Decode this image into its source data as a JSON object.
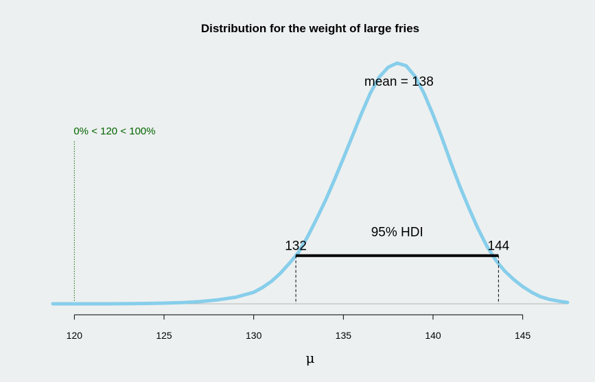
{
  "colors": {
    "background": "#edf0f0",
    "curve": "#87ceeb",
    "compare": "#006400",
    "hdi": "#000000",
    "baseline": "#b8b8b8"
  },
  "chart_data": {
    "type": "line",
    "title": "Distribution for the weight of large fries",
    "xlabel": "μ",
    "ylabel": "",
    "xlim": [
      118.8,
      147.5
    ],
    "xticks": [
      120,
      125,
      130,
      135,
      140,
      145
    ],
    "grid": false,
    "series": [
      {
        "x": [
          118.8,
          120,
          121,
          122,
          123,
          124,
          125,
          126,
          127,
          128,
          129,
          130,
          130.5,
          131,
          131.5,
          132,
          132.5,
          133,
          133.5,
          134,
          134.5,
          135,
          135.5,
          136,
          136.5,
          137,
          137.5,
          138,
          138.5,
          139,
          139.5,
          140,
          140.5,
          141,
          141.5,
          142,
          142.5,
          143,
          143.5,
          144,
          144.5,
          145,
          145.5,
          146,
          146.5,
          147,
          147.5
        ],
        "y": [
          0.0,
          0.0,
          0.0,
          0.0,
          0.0006,
          0.0014,
          0.0028,
          0.0051,
          0.0094,
          0.0164,
          0.0273,
          0.048,
          0.068,
          0.094,
          0.128,
          0.169,
          0.2137,
          0.278,
          0.3519,
          0.429,
          0.5152,
          0.6043,
          0.696,
          0.789,
          0.8745,
          0.942,
          0.983,
          1.0,
          0.989,
          0.9444,
          0.8742,
          0.7855,
          0.6883,
          0.5852,
          0.4869,
          0.3974,
          0.3133,
          0.2395,
          0.1808,
          0.1359,
          0.1008,
          0.0716,
          0.048,
          0.0294,
          0.0182,
          0.0112,
          0.0057
        ]
      }
    ],
    "annotations": {
      "mean_label": "mean = 138",
      "mean_x": 138.1,
      "hdi_label": "95% HDI",
      "hdi_low": 132.35,
      "hdi_high": 143.65,
      "hdi_low_label": "132",
      "hdi_high_label": "144",
      "compare_value": 120,
      "compare_label": "0% < 120 < 100%"
    }
  }
}
